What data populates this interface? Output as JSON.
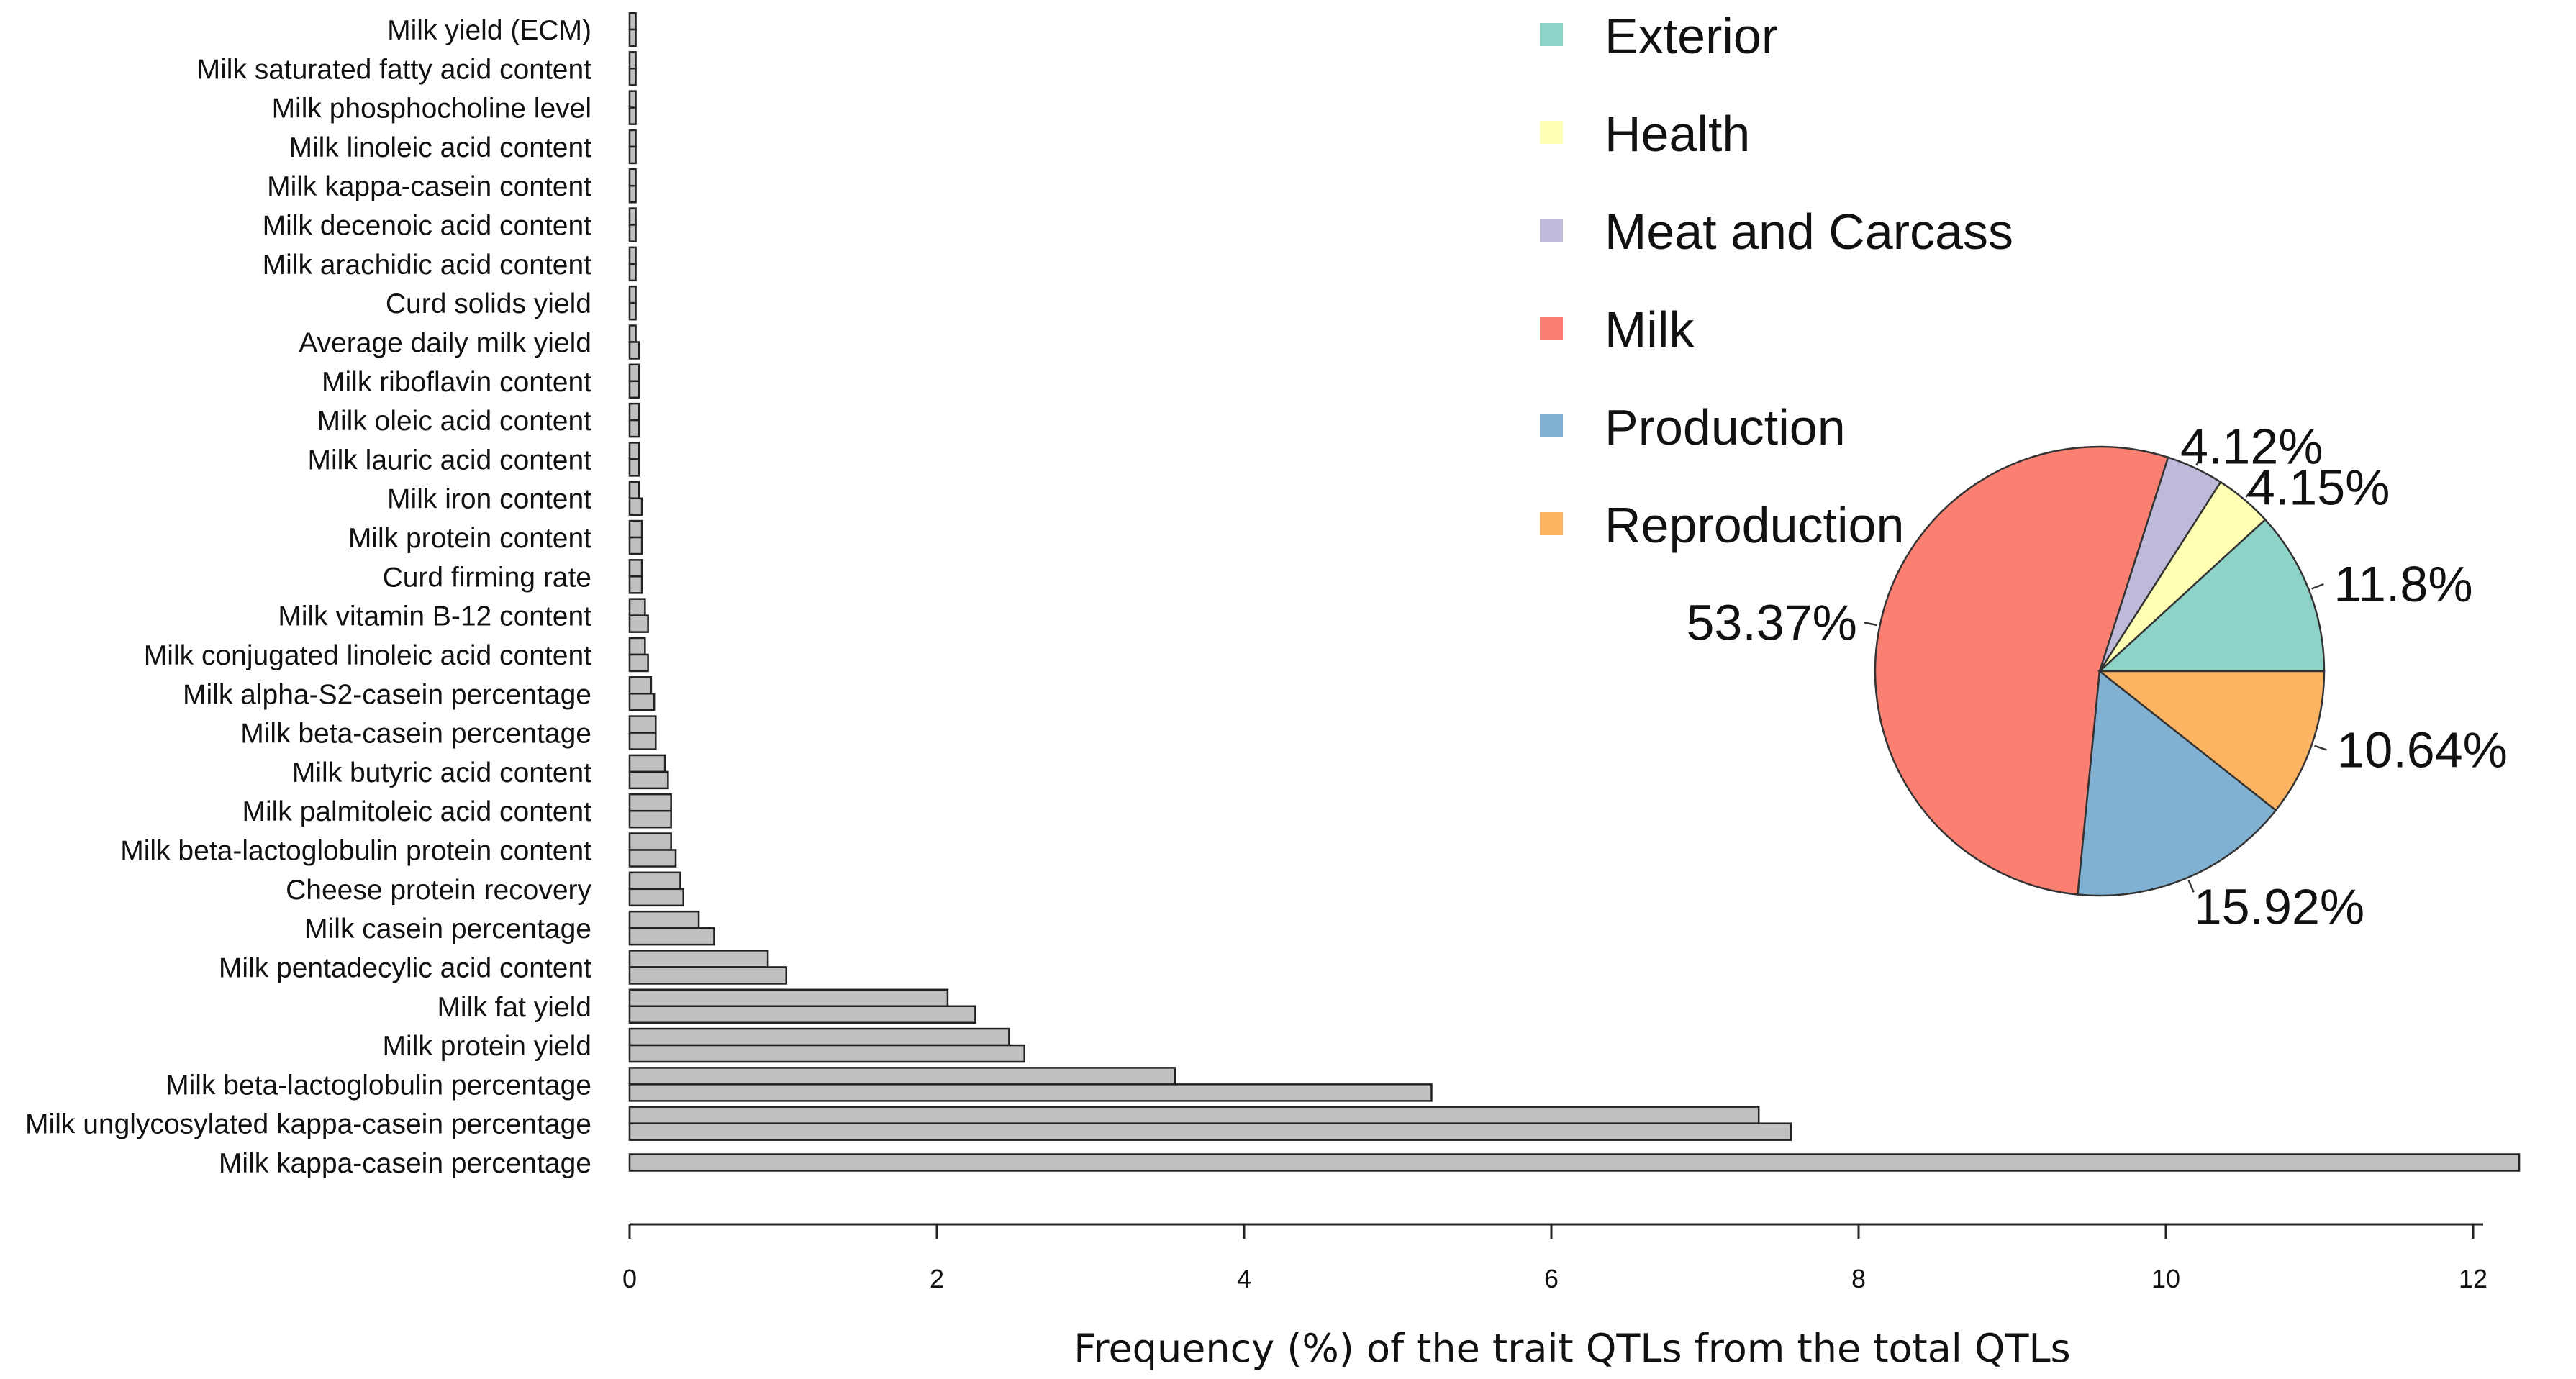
{
  "chart_data": [
    {
      "type": "bar",
      "orientation": "horizontal",
      "title": "",
      "xlabel": "Frequency (%) of the trait QTLs from the total QTLs",
      "ylabel": "",
      "xlim": [
        0,
        12
      ],
      "xticks": [
        0,
        2,
        4,
        6,
        8,
        10,
        12
      ],
      "grid": false,
      "bar_color": "#c0c0c0",
      "bar_edge_color": "#222222",
      "categories": [
        "Milk yield (ECM)",
        "Milk saturated fatty acid content",
        "Milk phosphocholine level",
        "Milk linoleic acid content",
        "Milk kappa-casein content",
        "Milk decenoic acid content",
        "Milk arachidic acid content",
        "Curd solids yield",
        "Average daily milk yield",
        "Milk riboflavin content",
        "Milk oleic acid content",
        "Milk lauric acid content",
        "Milk iron content",
        "Milk protein content",
        "Curd firming rate",
        "Milk vitamin B-12 content",
        "Milk conjugated linoleic acid content",
        "Milk alpha-S2-casein percentage",
        "Milk beta-casein percentage",
        "Milk butyric acid content",
        "Milk palmitoleic acid content",
        "Milk beta-lactoglobulin protein content",
        "Cheese protein recovery",
        "Milk casein percentage",
        "Milk pentadecylic acid content",
        "Milk fat yield",
        "Milk protein yield",
        "Milk beta-lactoglobulin percentage",
        "Milk unglycosylated kappa-casein percentage",
        "Milk kappa-casein percentage"
      ],
      "series": [
        {
          "name": "bar_a",
          "values": [
            0.04,
            0.04,
            0.04,
            0.04,
            0.04,
            0.04,
            0.04,
            0.04,
            0.04,
            0.06,
            0.06,
            0.06,
            0.06,
            0.08,
            0.08,
            0.1,
            0.1,
            0.14,
            0.17,
            0.23,
            0.27,
            0.27,
            0.33,
            0.45,
            0.9,
            2.07,
            2.47,
            3.55,
            7.35,
            12.3
          ]
        },
        {
          "name": "bar_b",
          "values": [
            0.04,
            0.04,
            0.04,
            0.04,
            0.04,
            0.04,
            0.04,
            0.04,
            0.06,
            0.06,
            0.06,
            0.06,
            0.08,
            0.08,
            0.08,
            0.12,
            0.12,
            0.16,
            0.17,
            0.25,
            0.27,
            0.3,
            0.35,
            0.55,
            1.02,
            2.25,
            2.57,
            5.22,
            7.56,
            null
          ]
        }
      ]
    },
    {
      "type": "pie",
      "title": "",
      "legend_position": "top-right",
      "slices": [
        {
          "label": "Exterior",
          "value": 11.8,
          "display": "11.8%",
          "color": "#8dd3c7"
        },
        {
          "label": "Health",
          "value": 4.15,
          "display": "4.15%",
          "color": "#ffffb3"
        },
        {
          "label": "Meat and Carcass",
          "value": 4.12,
          "display": "4.12%",
          "color": "#bebada"
        },
        {
          "label": "Milk",
          "value": 53.37,
          "display": "53.37%",
          "color": "#fb8072"
        },
        {
          "label": "Production",
          "value": 15.92,
          "display": "15.92%",
          "color": "#80b1d3"
        },
        {
          "label": "Reproduction",
          "value": 10.64,
          "display": "10.64%",
          "color": "#fdb462"
        }
      ]
    }
  ]
}
